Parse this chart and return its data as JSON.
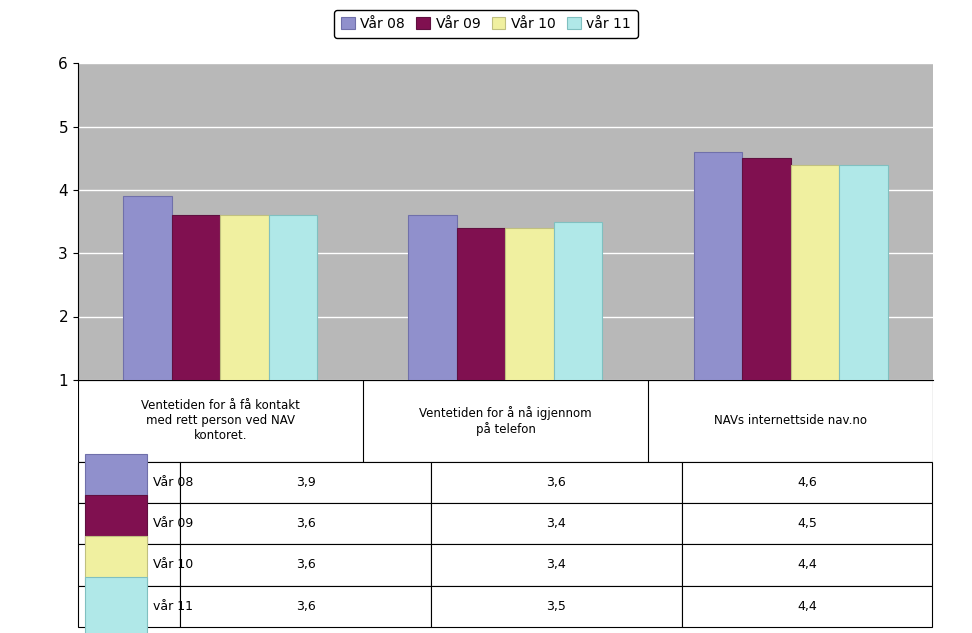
{
  "categories": [
    "Ventetiden for å få kontakt\nmed rett person ved NAV\nkontoret.",
    "Ventetiden for å nå igjennom\npå telefon",
    "NAVs internettside nav.no"
  ],
  "series": [
    {
      "label": "Vår 08",
      "values": [
        3.9,
        3.6,
        4.6
      ],
      "color": "#9090cc",
      "edgecolor": "#7070aa"
    },
    {
      "label": "Vår 09",
      "values": [
        3.6,
        3.4,
        4.5
      ],
      "color": "#801050",
      "edgecolor": "#601040"
    },
    {
      "label": "Vår 10",
      "values": [
        3.6,
        3.4,
        4.4
      ],
      "color": "#f0f0a0",
      "edgecolor": "#c0c080"
    },
    {
      "label": "vår 11",
      "values": [
        3.6,
        3.5,
        4.4
      ],
      "color": "#b0e8e8",
      "edgecolor": "#80c0c0"
    }
  ],
  "ylim": [
    1,
    6
  ],
  "yticks": [
    1,
    2,
    3,
    4,
    5,
    6
  ],
  "table_data": [
    [
      "Vår 08",
      "3,9",
      "3,6",
      "4,6"
    ],
    [
      "Vår 09",
      "3,6",
      "3,4",
      "4,5"
    ],
    [
      "Vår 10",
      "3,6",
      "3,4",
      "4,4"
    ],
    [
      "vår 11",
      "3,6",
      "3,5",
      "4,4"
    ]
  ],
  "bar_width": 0.17,
  "plot_bg_color": "#b8b8b8",
  "fig_bg_color": "#ffffff",
  "legend_colors": [
    "#9090cc",
    "#801050",
    "#f0f0a0",
    "#b0e8e8"
  ],
  "legend_edge_colors": [
    "#7070aa",
    "#601040",
    "#c0c080",
    "#80c0c0"
  ]
}
